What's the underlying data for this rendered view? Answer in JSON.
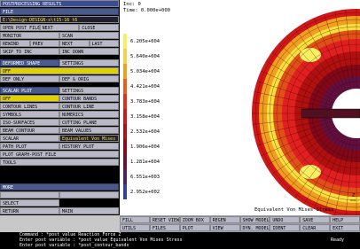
{
  "panel": {
    "rows": [
      [
        "POSTPROCESSING RESULTS"
      ],
      [
        "FILE"
      ],
      [
        "E:\\Design-DESIGN-s\\t15-16_t6"
      ],
      [
        "OPEN POST FILE",
        "NEXT",
        "CLOSE"
      ],
      [
        "MONITOR",
        "SCAN"
      ],
      [
        "REWIND",
        "PREV",
        "NEXT",
        "LAST"
      ],
      [
        "SKIP TO INC",
        "INC DOWN"
      ],
      [
        "DEFORMED SHAPE",
        "SETTINGS"
      ],
      [
        "OFF"
      ],
      [
        "DEF ONLY",
        "DEF & ORIG"
      ],
      [
        "SCALAR PLOT",
        "SETTINGS"
      ],
      [
        "OFF",
        "CONTOUR BANDS"
      ],
      [
        "CONTOUR LINES",
        "CONTOUR LINE"
      ],
      [
        "SYMBOLS",
        "NUMERICS"
      ],
      [
        "ISO-SURFACES",
        "CUTTING PLANE"
      ],
      [
        "BEAM CONTOUR",
        "BEAM VALUES"
      ],
      [
        "SCALAR",
        "Equivalent Von Mises"
      ],
      [
        "PATH PLOT",
        "HISTORY PLOT"
      ],
      [
        "PLOT GRAPH-POST FILE"
      ],
      [
        "TOOLS"
      ]
    ],
    "more": "MORE",
    "select": "SELECT",
    "return": "RETURN",
    "main": "MAIN"
  },
  "viewport": {
    "inc": "Inc:  0",
    "time": "Time:  0.000e+000",
    "legend": [
      "6.205e+004",
      "5.640e+004",
      "5.034e+004",
      "4.421e+004",
      "3.783e+004",
      "3.158e+004",
      "2.532e+004",
      "1.906e+004",
      "1.281e+004",
      "6.551e+003",
      "2.952e+002"
    ],
    "caption": "Equivalent Von Mises Stress",
    "axis": "Z"
  },
  "toolbar": {
    "rows": [
      [
        "FILL",
        "RESET VIEW",
        "ZOOM BOX",
        "REGEN",
        "SHOW MODEL",
        "UNDO",
        "SAVE",
        "HELP"
      ],
      [
        "UTILS",
        "FILES",
        "PLOT",
        "VIEW",
        "DYN. MODEL",
        "IDENT",
        "CLEAR",
        "EXIT"
      ]
    ]
  },
  "command": {
    "lines": [
      "Command : *post_value Reaction Force Z",
      "Enter post variable : *post_value Equivalent Von Mises Stress",
      "Enter post variable : *post_contour_bands"
    ],
    "status": "Ready"
  }
}
